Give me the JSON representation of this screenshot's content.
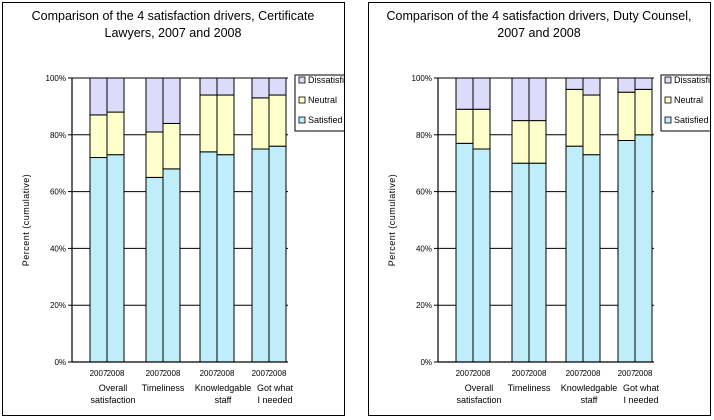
{
  "colors": {
    "satisfied": "#bfeefa",
    "neutral": "#ffffcc",
    "dissatisfied": "#dcdcfa",
    "border": "#000000",
    "grid": "#000000"
  },
  "chart_data": [
    {
      "type": "bar",
      "stacked": true,
      "title_lines": [
        "Comparison of the 4 satisfaction drivers, Certificate",
        "Lawyers, 2007 and 2008"
      ],
      "ylabel": "Percent (cumulative)",
      "ylim": [
        0,
        100
      ],
      "y_ticks": [
        "0%",
        "20%",
        "40%",
        "60%",
        "80%",
        "100%"
      ],
      "legend": [
        "Dissatisfied",
        "Neutral",
        "Satisfied"
      ],
      "legend_position": "right",
      "grid": true,
      "groups": [
        {
          "label": [
            "Overall",
            "satisfaction"
          ],
          "years": [
            "2007",
            "2008"
          ],
          "satisfied": [
            72,
            73
          ],
          "neutral": [
            15,
            15
          ],
          "dissatisfied": [
            13,
            12
          ]
        },
        {
          "label": [
            "Timeliness"
          ],
          "years": [
            "2007",
            "2008"
          ],
          "satisfied": [
            65,
            68
          ],
          "neutral": [
            16,
            16
          ],
          "dissatisfied": [
            19,
            16
          ]
        },
        {
          "label": [
            "Knowledgable",
            "staff"
          ],
          "years": [
            "2007",
            "2008"
          ],
          "satisfied": [
            74,
            73
          ],
          "neutral": [
            20,
            21
          ],
          "dissatisfied": [
            6,
            6
          ]
        },
        {
          "label": [
            "Got what",
            "I needed"
          ],
          "years": [
            "2007",
            "2008"
          ],
          "satisfied": [
            75,
            76
          ],
          "neutral": [
            18,
            18
          ],
          "dissatisfied": [
            7,
            6
          ]
        }
      ]
    },
    {
      "type": "bar",
      "stacked": true,
      "title_lines": [
        "Comparison of the 4 satisfaction drivers, Duty Counsel,",
        "2007 and 2008"
      ],
      "ylabel": "Percent (cumulative)",
      "ylim": [
        0,
        100
      ],
      "y_ticks": [
        "0%",
        "20%",
        "40%",
        "60%",
        "80%",
        "100%"
      ],
      "legend": [
        "Dissatisfied",
        "Neutral",
        "Satisfied"
      ],
      "legend_position": "right",
      "grid": true,
      "groups": [
        {
          "label": [
            "Overall",
            "satisfaction"
          ],
          "years": [
            "2007",
            "2008"
          ],
          "satisfied": [
            77,
            75
          ],
          "neutral": [
            12,
            14
          ],
          "dissatisfied": [
            11,
            11
          ]
        },
        {
          "label": [
            "Timeliness"
          ],
          "years": [
            "2007",
            "2008"
          ],
          "satisfied": [
            70,
            70
          ],
          "neutral": [
            15,
            15
          ],
          "dissatisfied": [
            15,
            15
          ]
        },
        {
          "label": [
            "Knowledgable",
            "staff"
          ],
          "years": [
            "2007",
            "2008"
          ],
          "satisfied": [
            76,
            73
          ],
          "neutral": [
            20,
            21
          ],
          "dissatisfied": [
            4,
            6
          ]
        },
        {
          "label": [
            "Got what",
            "I needed"
          ],
          "years": [
            "2007",
            "2008"
          ],
          "satisfied": [
            78,
            80
          ],
          "neutral": [
            17,
            16
          ],
          "dissatisfied": [
            5,
            4
          ]
        }
      ]
    }
  ]
}
